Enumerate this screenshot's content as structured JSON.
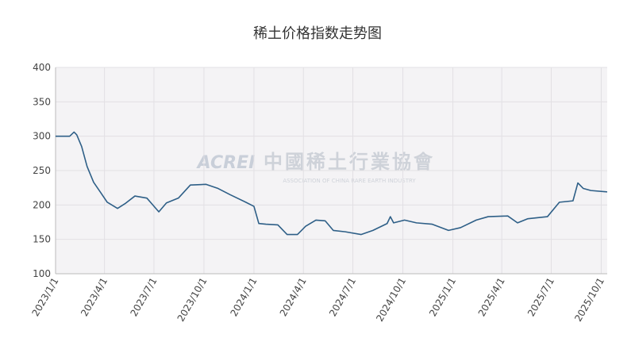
{
  "chart_data": {
    "type": "line",
    "title": "稀土价格指数走势图",
    "watermark": {
      "logo": "ACREI",
      "name": "中國稀土行業協會",
      "subtitle": "ASSOCIATION OF CHINA RARE EARTH INDUSTRY"
    },
    "x": [
      "2023/1/1",
      "2023/1/27",
      "2023/2/4",
      "2023/2/9",
      "2023/2/18",
      "2023/2/28",
      "2023/3/12",
      "2023/3/25",
      "2023/4/6",
      "2023/4/25",
      "2023/5/9",
      "2023/5/27",
      "2023/6/18",
      "2023/7/10",
      "2023/7/24",
      "2023/8/15",
      "2023/9/6",
      "2023/10/5",
      "2023/10/27",
      "2023/11/18",
      "2023/12/17",
      "2024/1/1",
      "2024/1/10",
      "2024/1/23",
      "2024/2/14",
      "2024/3/2",
      "2024/3/21",
      "2024/4/5",
      "2024/4/24",
      "2024/5/11",
      "2024/5/26",
      "2024/6/17",
      "2024/7/16",
      "2024/8/7",
      "2024/9/2",
      "2024/9/8",
      "2024/9/14",
      "2024/10/4",
      "2024/10/26",
      "2024/11/24",
      "2024/12/24",
      "2025/1/15",
      "2025/2/13",
      "2025/3/7",
      "2025/4/12",
      "2025/4/30",
      "2025/5/19",
      "2025/6/24",
      "2025/7/16",
      "2025/8/10",
      "2025/8/19",
      "2025/8/29",
      "2025/9/12",
      "2025/10/12"
    ],
    "series": [
      {
        "name": "稀土价格指数",
        "color": "#2e5f87",
        "values": [
          300,
          300,
          306,
          302,
          285,
          256,
          233,
          218,
          204,
          195,
          202,
          213,
          210,
          190,
          203,
          210,
          229,
          230,
          224,
          215,
          204,
          198,
          173,
          172,
          171,
          157,
          157,
          169,
          178,
          177,
          163,
          161,
          157,
          163,
          173,
          183,
          174,
          178,
          174,
          172,
          163,
          167,
          178,
          183,
          184,
          174,
          180,
          183,
          204,
          206,
          232,
          224,
          221,
          219
        ]
      }
    ],
    "xlim": [
      "2023/1/1",
      "2025/10/12"
    ],
    "xticks": [
      "2023/1/1",
      "2023/4/1",
      "2023/7/1",
      "2023/10/1",
      "2024/1/1",
      "2024/4/1",
      "2024/7/1",
      "2024/10/1",
      "2025/1/1",
      "2025/4/1",
      "2025/7/1",
      "2025/10/1"
    ],
    "ylim": [
      100,
      400
    ],
    "yticks": [
      100,
      150,
      200,
      250,
      300,
      350,
      400
    ],
    "grid": true
  }
}
